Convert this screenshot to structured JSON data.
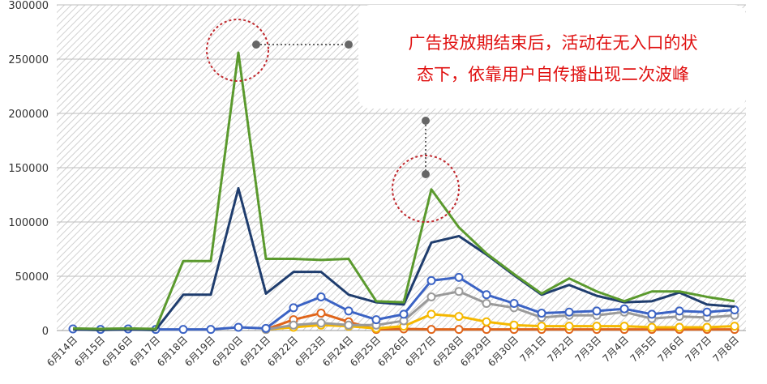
{
  "chart_data": {
    "type": "line",
    "title": "",
    "xlabel": "",
    "ylabel": "",
    "ylim": [
      0,
      300000
    ],
    "yticks": [
      0,
      50000,
      100000,
      150000,
      200000,
      250000,
      300000
    ],
    "grid": true,
    "legend": "none",
    "categories": [
      "6月14日",
      "6月15日",
      "6月16日",
      "6月17日",
      "6月18日",
      "6月19日",
      "6月20日",
      "6月21日",
      "6月22日",
      "6月23日",
      "6月24日",
      "6月25日",
      "6月26日",
      "6月27日",
      "6月28日",
      "6月29日",
      "6月30日",
      "7月1日",
      "7月2日",
      "7月3日",
      "7月4日",
      "7月5日",
      "7月6日",
      "7月7日",
      "7月8日"
    ],
    "series": [
      {
        "color": "#5b9a2e",
        "marker": false,
        "values": [
          2000,
          1500,
          2000,
          1500,
          64000,
          64000,
          256000,
          66000,
          66000,
          65000,
          66000,
          27000,
          26000,
          130000,
          95000,
          71000,
          52000,
          34000,
          48000,
          36000,
          27000,
          36000,
          36000,
          31000,
          27000
        ]
      },
      {
        "color": "#1f3d6e",
        "marker": false,
        "values": [
          1000,
          500,
          1000,
          500,
          33000,
          33000,
          131000,
          34000,
          54000,
          54000,
          33000,
          26000,
          24000,
          81000,
          87000,
          70000,
          51000,
          33000,
          42000,
          32000,
          26000,
          27000,
          35000,
          24000,
          22000
        ]
      },
      {
        "color": "#3b63c4",
        "marker": true,
        "values": [
          1500,
          1000,
          1500,
          1000,
          1000,
          1000,
          3000,
          2000,
          21000,
          31000,
          18000,
          10000,
          15000,
          46000,
          49000,
          33000,
          25000,
          16000,
          17000,
          18000,
          20000,
          15000,
          18000,
          17000,
          19000
        ]
      },
      {
        "color": "#9a9a9a",
        "marker": true,
        "values": [
          null,
          null,
          null,
          null,
          null,
          null,
          null,
          1000,
          5000,
          7000,
          5000,
          5000,
          9000,
          31000,
          36000,
          25000,
          21000,
          12000,
          14000,
          14000,
          17000,
          11000,
          13000,
          12000,
          14000
        ]
      },
      {
        "color": "#f5b800",
        "marker": true,
        "values": [
          null,
          null,
          null,
          null,
          null,
          null,
          null,
          1000,
          3000,
          5000,
          4000,
          2000,
          4000,
          15000,
          13000,
          8000,
          5000,
          4000,
          4000,
          4000,
          4000,
          3000,
          3000,
          3000,
          4000
        ]
      },
      {
        "color": "#e0651a",
        "marker": true,
        "values": [
          null,
          null,
          null,
          null,
          null,
          null,
          null,
          1000,
          10000,
          16000,
          8000,
          1000,
          1500,
          1000,
          1000,
          1000,
          1000,
          1000,
          1000,
          1000,
          1000,
          1000,
          1000,
          1000,
          1000
        ]
      }
    ],
    "annotation": {
      "text_lines": [
        "广告投放期结束后，活动在无入口的状",
        "态下，依靠用户自传播出现二次波峰"
      ],
      "circle_points": [
        "6月20日",
        "6月27日"
      ]
    }
  },
  "colors": {
    "annotation": "#e01010",
    "connector": "#666666",
    "grid_hatch": "#cccccc"
  }
}
